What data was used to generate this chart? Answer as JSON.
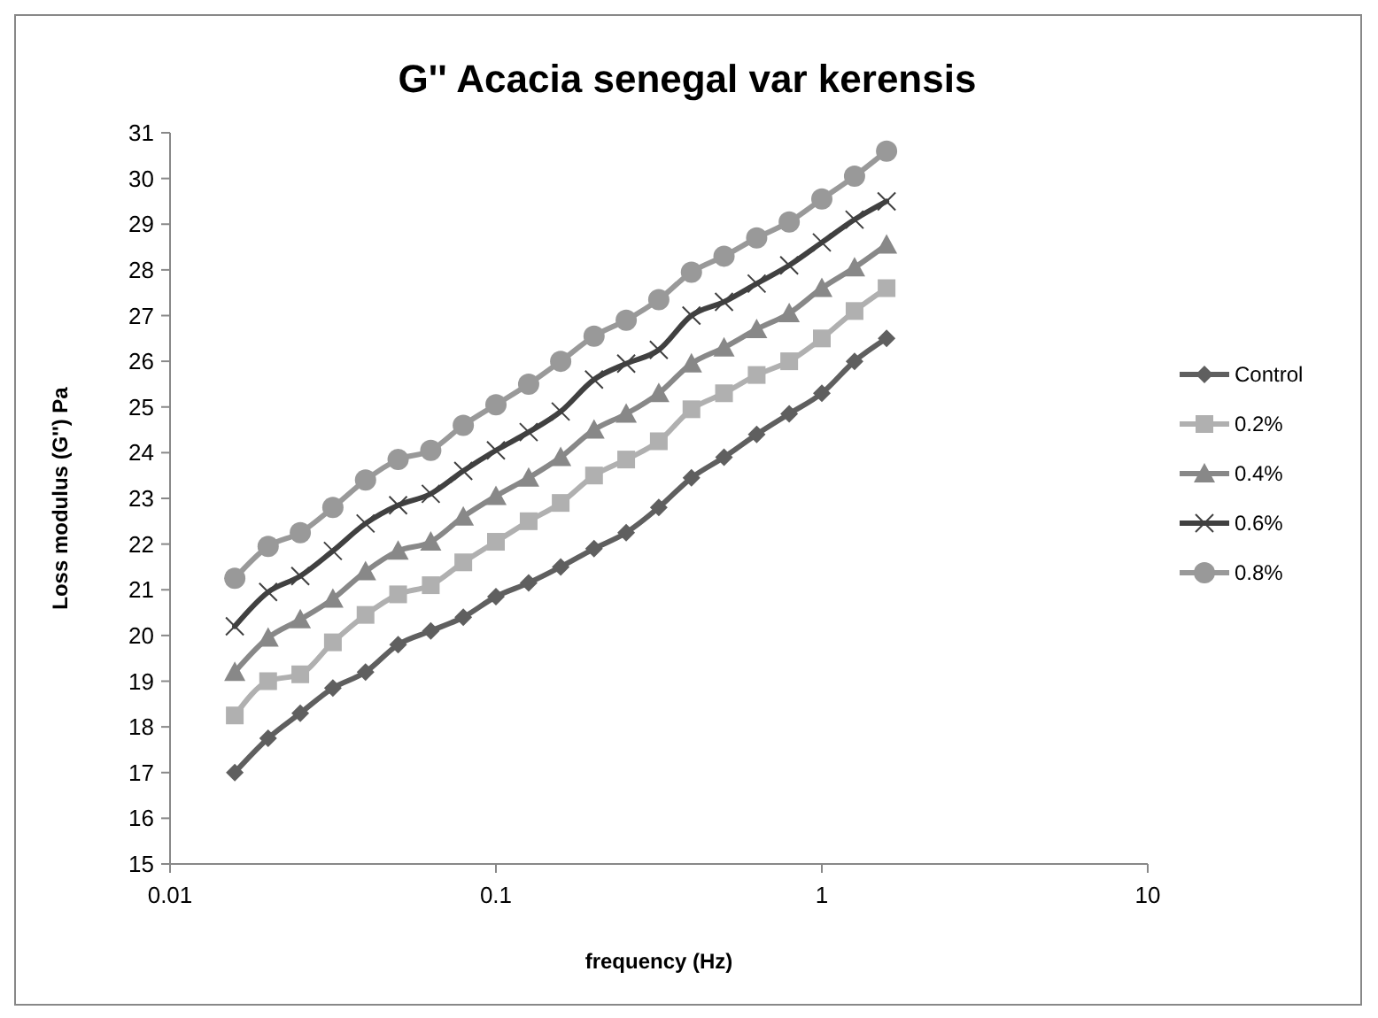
{
  "chart_data": {
    "type": "line",
    "title": "G'' Acacia senegal var kerensis",
    "xlabel": "frequency (Hz)",
    "ylabel": "Loss modulus (G'') Pa",
    "log": "x",
    "xlim": [
      0.01,
      10
    ],
    "xticks": [
      0.01,
      0.1,
      1,
      10
    ],
    "ylim": [
      15,
      31
    ],
    "yticks": [
      15,
      16,
      17,
      18,
      19,
      20,
      21,
      22,
      23,
      24,
      25,
      26,
      27,
      28,
      29,
      30,
      31
    ],
    "grid": false,
    "legend": "right",
    "x": [
      0.0158,
      0.02,
      0.0251,
      0.0316,
      0.0398,
      0.0501,
      0.0631,
      0.0794,
      0.1,
      0.126,
      0.158,
      0.2,
      0.251,
      0.316,
      0.398,
      0.501,
      0.631,
      0.794,
      1,
      1.26,
      1.58
    ],
    "series": [
      {
        "name": "Control",
        "color": "#5f5f5f",
        "marker": "diamond",
        "values": [
          17.0,
          17.75,
          18.3,
          18.85,
          19.2,
          19.8,
          20.1,
          20.4,
          20.85,
          21.15,
          21.5,
          21.9,
          22.25,
          22.8,
          23.45,
          23.9,
          24.4,
          24.85,
          25.3,
          26.0,
          26.5
        ]
      },
      {
        "name": "0.2%",
        "color": "#b0b0b0",
        "marker": "square",
        "values": [
          18.25,
          19.0,
          19.15,
          19.85,
          20.45,
          20.9,
          21.1,
          21.6,
          22.05,
          22.5,
          22.9,
          23.5,
          23.85,
          24.25,
          24.95,
          25.3,
          25.7,
          26.0,
          26.5,
          27.1,
          27.6
        ]
      },
      {
        "name": "0.4%",
        "color": "#888888",
        "marker": "triangle",
        "values": [
          19.2,
          19.95,
          20.35,
          20.8,
          21.4,
          21.85,
          22.05,
          22.6,
          23.05,
          23.45,
          23.9,
          24.5,
          24.85,
          25.3,
          25.95,
          26.3,
          26.7,
          27.05,
          27.6,
          28.05,
          28.55
        ]
      },
      {
        "name": "0.6%",
        "color": "#404040",
        "marker": "cross",
        "values": [
          20.2,
          20.95,
          21.3,
          21.85,
          22.45,
          22.85,
          23.1,
          23.6,
          24.05,
          24.45,
          24.9,
          25.6,
          25.95,
          26.25,
          27.0,
          27.3,
          27.7,
          28.1,
          28.6,
          29.1,
          29.5
        ]
      },
      {
        "name": "0.8%",
        "color": "#999999",
        "marker": "circle",
        "values": [
          21.25,
          21.95,
          22.25,
          22.8,
          23.4,
          23.85,
          24.05,
          24.6,
          25.05,
          25.5,
          26.0,
          26.55,
          26.9,
          27.35,
          27.95,
          28.3,
          28.7,
          29.05,
          29.55,
          30.05,
          30.6
        ]
      }
    ]
  }
}
